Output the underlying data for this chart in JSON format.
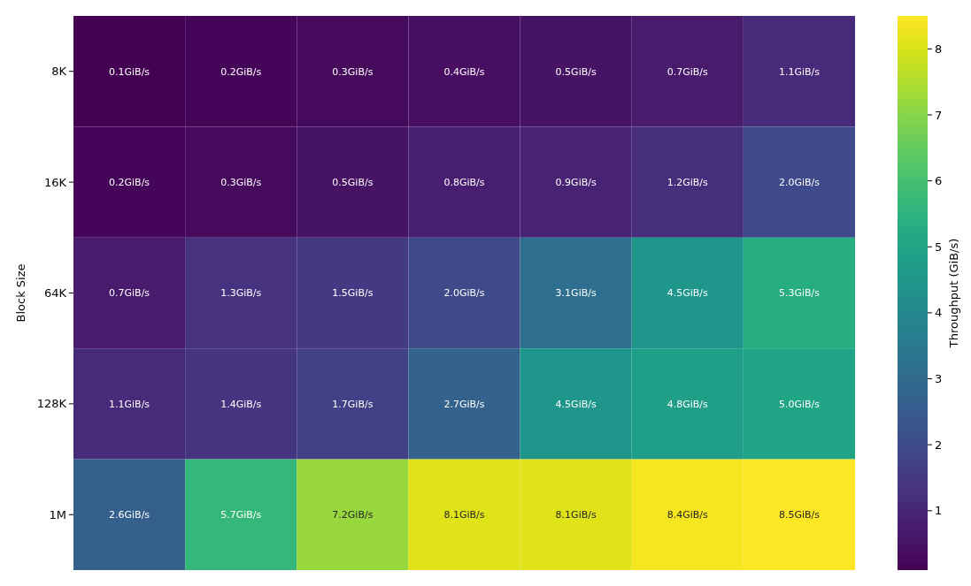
{
  "chart_data": {
    "type": "heatmap",
    "ylabel": "Block Size",
    "clabel": "Throughput (GiB/s)",
    "categories": [
      null,
      null,
      null,
      null,
      null,
      null,
      null
    ],
    "y_categories": [
      "8K",
      "16K",
      "64K",
      "128K",
      "1M"
    ],
    "cells": [
      [
        0.1,
        0.2,
        0.3,
        0.4,
        0.5,
        0.7,
        1.1
      ],
      [
        0.2,
        0.3,
        0.5,
        0.8,
        0.9,
        1.2,
        2.0
      ],
      [
        0.7,
        1.3,
        1.5,
        2.0,
        3.1,
        4.5,
        5.3
      ],
      [
        1.1,
        1.4,
        1.7,
        2.7,
        4.5,
        4.8,
        5.0
      ],
      [
        2.6,
        5.7,
        7.2,
        8.1,
        8.1,
        8.4,
        8.5
      ]
    ],
    "cell_labels": [
      [
        "0.1GiB/s",
        "0.2GiB/s",
        "0.3GiB/s",
        "0.4GiB/s",
        "0.5GiB/s",
        "0.7GiB/s",
        "1.1GiB/s"
      ],
      [
        "0.2GiB/s",
        "0.3GiB/s",
        "0.5GiB/s",
        "0.8GiB/s",
        "0.9GiB/s",
        "1.2GiB/s",
        "2.0GiB/s"
      ],
      [
        "0.7GiB/s",
        "1.3GiB/s",
        "1.5GiB/s",
        "2.0GiB/s",
        "3.1GiB/s",
        "4.5GiB/s",
        "5.3GiB/s"
      ],
      [
        "1.1GiB/s",
        "1.4GiB/s",
        "1.7GiB/s",
        "2.7GiB/s",
        "4.5GiB/s",
        "4.8GiB/s",
        "5.0GiB/s"
      ],
      [
        "2.6GiB/s",
        "5.7GiB/s",
        "7.2GiB/s",
        "8.1GiB/s",
        "8.1GiB/s",
        "8.4GiB/s",
        "8.5GiB/s"
      ]
    ],
    "clim": [
      0.1,
      8.5
    ],
    "cticks": [
      1,
      2,
      3,
      4,
      5,
      6,
      7,
      8
    ]
  }
}
